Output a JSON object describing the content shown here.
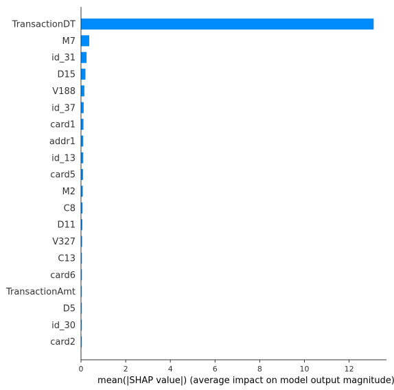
{
  "chart_data": {
    "type": "bar",
    "orientation": "horizontal",
    "categories": [
      "TransactionDT",
      "M7",
      "id_31",
      "D15",
      "V188",
      "id_37",
      "card1",
      "addr1",
      "id_13",
      "card5",
      "M2",
      "C8",
      "D11",
      "V327",
      "C13",
      "card6",
      "TransactionAmt",
      "D5",
      "id_30",
      "card2"
    ],
    "values": [
      13.1,
      0.37,
      0.25,
      0.2,
      0.15,
      0.12,
      0.11,
      0.1,
      0.1,
      0.09,
      0.08,
      0.07,
      0.06,
      0.05,
      0.04,
      0.04,
      0.03,
      0.03,
      0.03,
      0.03
    ],
    "xlabel": "mean(|SHAP value|) (average impact on model output magnitude)",
    "ylabel": "",
    "xlim": [
      0,
      13.6
    ],
    "xticks": [
      0,
      2,
      4,
      6,
      8,
      10,
      12
    ],
    "grid": false,
    "bar_color": "#008bfb"
  }
}
